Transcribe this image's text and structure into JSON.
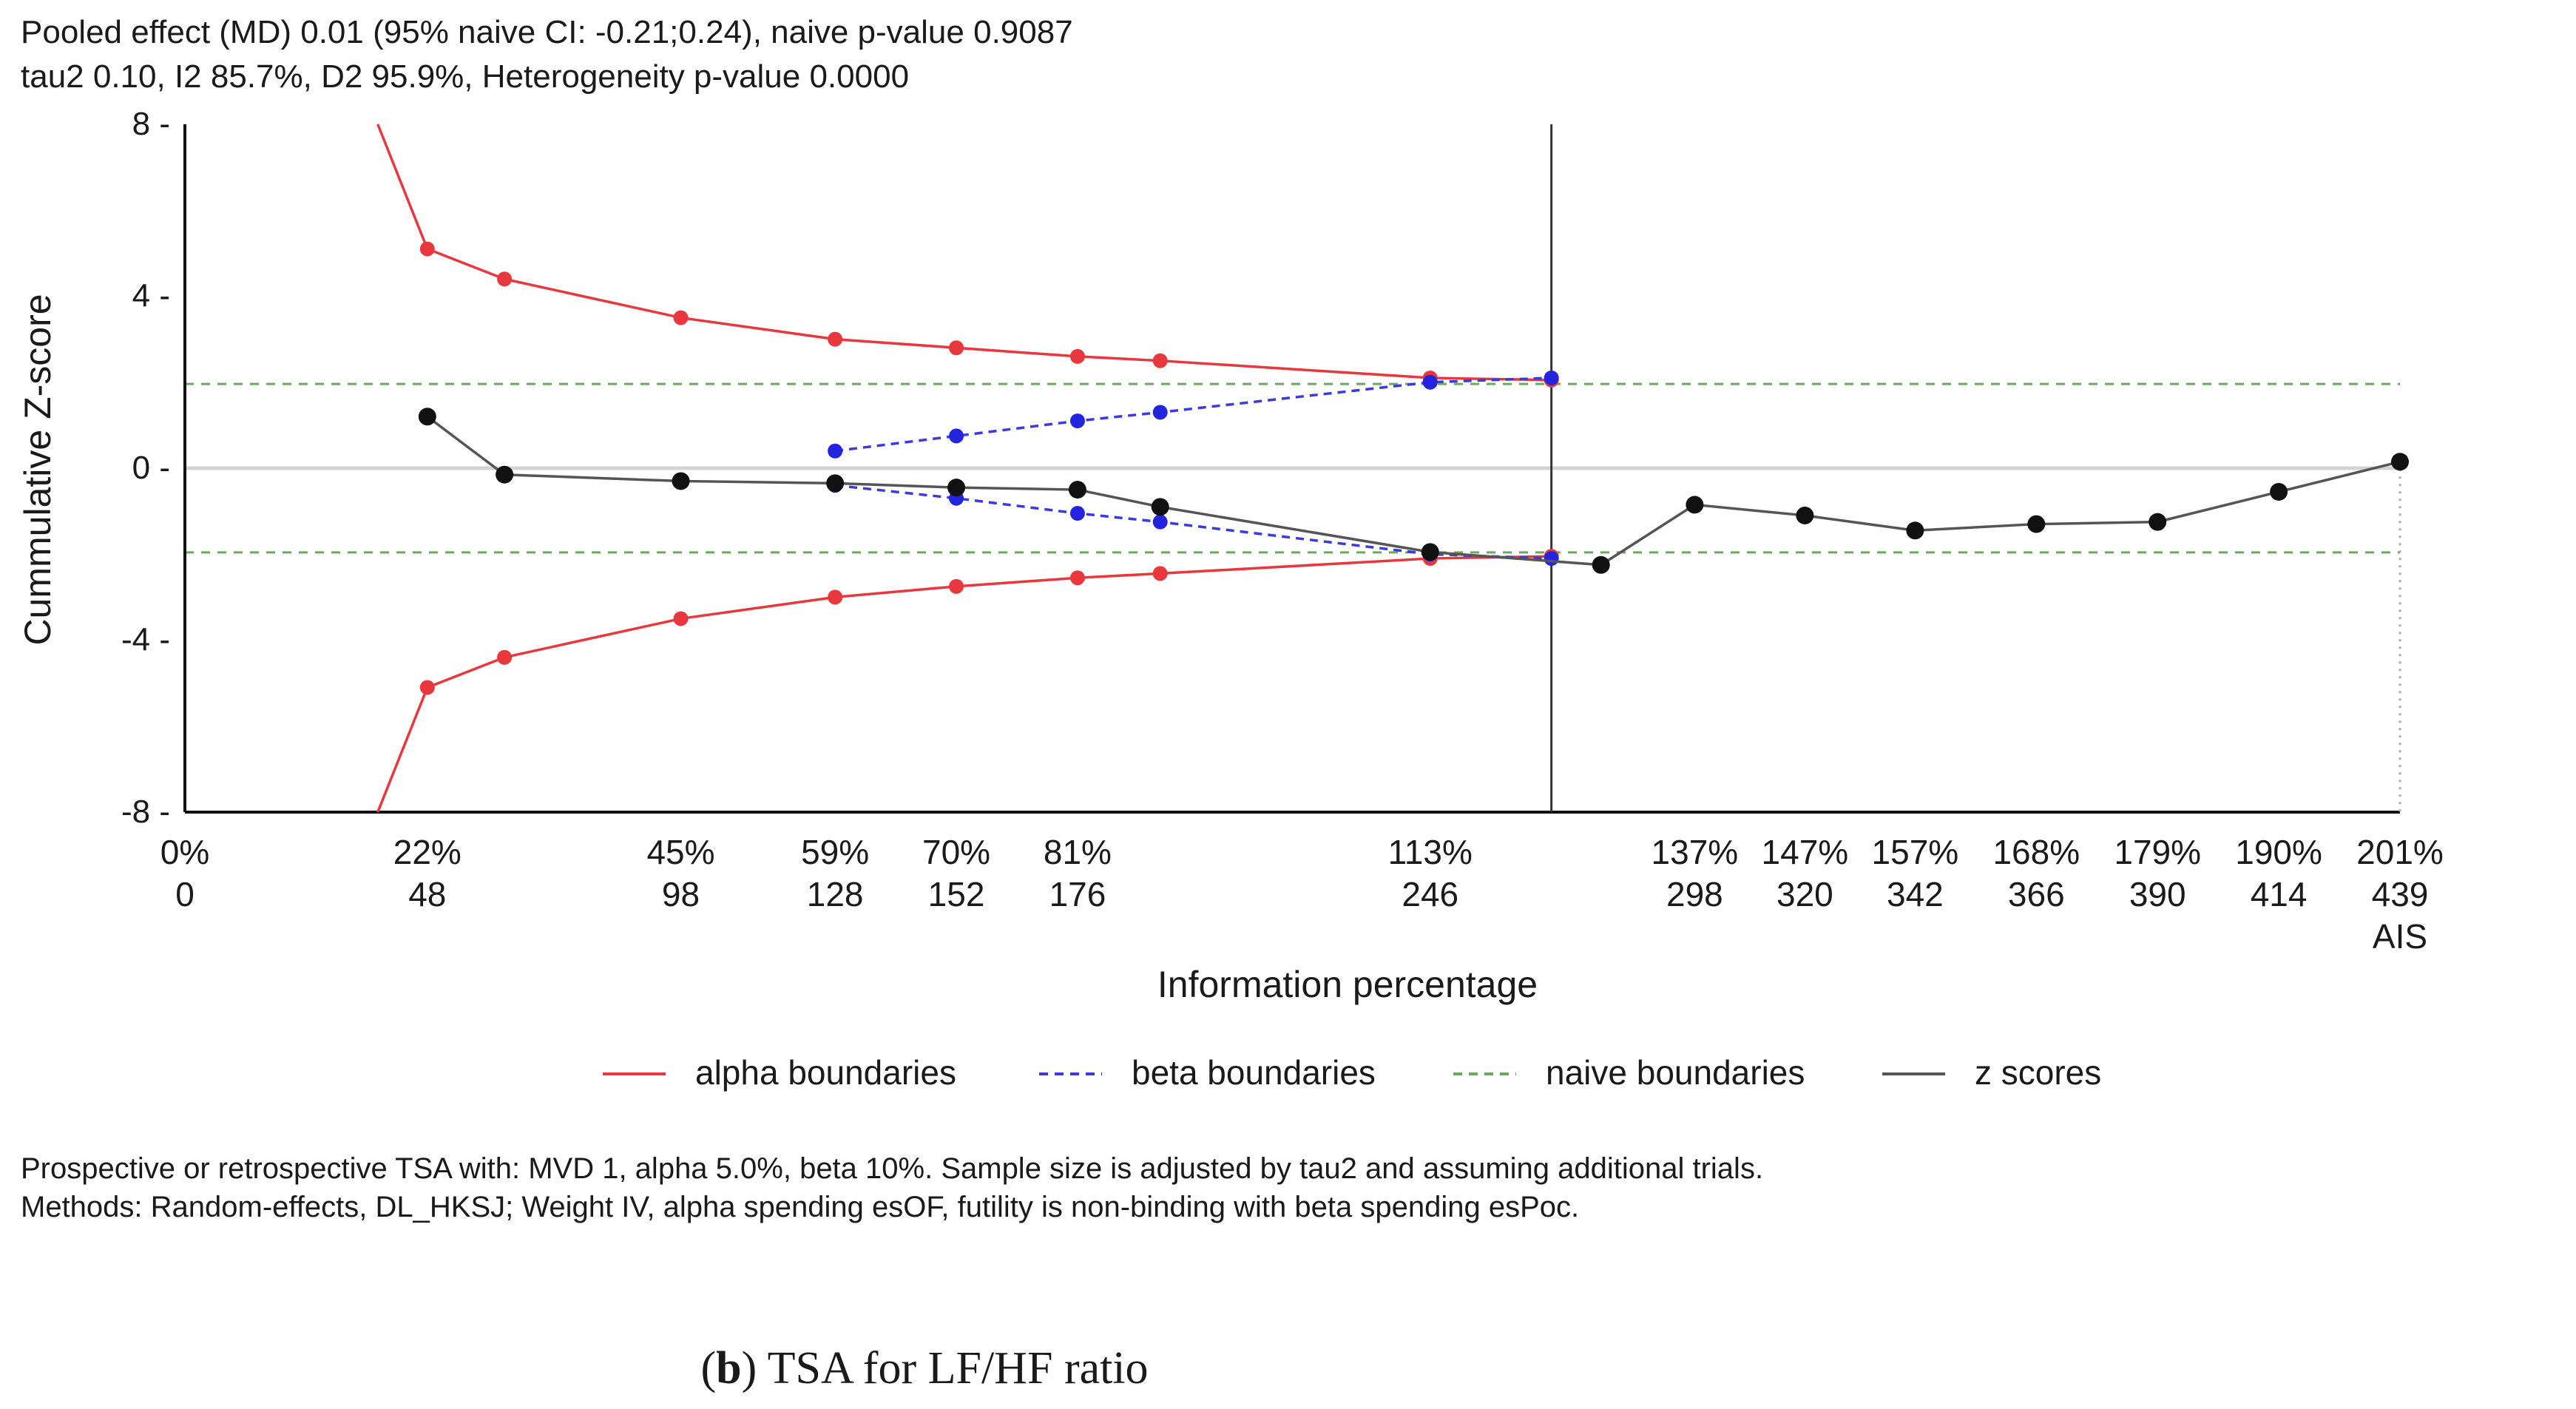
{
  "header": {
    "line1": "Pooled effect (MD) 0.01 (95% naive CI: -0.21;0.24), naive p-value 0.9087",
    "line2": "tau2 0.10, I2 85.7%, D2 95.9%, Heterogeneity p-value 0.0000"
  },
  "footer": {
    "line1": "Prospective or retrospective TSA with: MVD 1, alpha 5.0%, beta 10%. Sample size is adjusted by tau2 and assuming  additional trials.",
    "line2": "Methods: Random-effects, DL_HKSJ; Weight IV, alpha spending esOF, futility is non-binding with beta spending esPoc."
  },
  "caption": {
    "prefix": "(",
    "bold": "b",
    "rest": ") TSA for LF/HF ratio"
  },
  "legend": [
    {
      "label": "alpha boundaries",
      "color": "#e8383d",
      "dash": "solid"
    },
    {
      "label": "beta boundaries",
      "color": "#3a3adf",
      "dash": "dashed"
    },
    {
      "label": "naive boundaries",
      "color": "#6aaa5c",
      "dash": "dashed"
    },
    {
      "label": "z scores",
      "color": "#555555",
      "dash": "solid"
    }
  ],
  "chart_data": {
    "type": "line",
    "xlabel": "Information percentage",
    "ylabel": "Cummulative Z-score",
    "xlim": [
      0,
      201
    ],
    "ylim": [
      -8,
      8
    ],
    "yticks": [
      8,
      4,
      0,
      -4,
      -8
    ],
    "yticklabels": [
      "8 -",
      "4 -",
      "0 -",
      "-4 -",
      "-8 -"
    ],
    "xticks": [
      {
        "pct": 0,
        "label": "0%",
        "n": "0"
      },
      {
        "pct": 22,
        "label": "22%",
        "n": "48"
      },
      {
        "pct": 45,
        "label": "45%",
        "n": "98"
      },
      {
        "pct": 59,
        "label": "59%",
        "n": "128"
      },
      {
        "pct": 70,
        "label": "70%",
        "n": "152"
      },
      {
        "pct": 81,
        "label": "81%",
        "n": "176"
      },
      {
        "pct": 113,
        "label": "113%",
        "n": "246"
      },
      {
        "pct": 137,
        "label": "137%",
        "n": "298"
      },
      {
        "pct": 147,
        "label": "147%",
        "n": "320"
      },
      {
        "pct": 157,
        "label": "157%",
        "n": "342"
      },
      {
        "pct": 168,
        "label": "168%",
        "n": "366"
      },
      {
        "pct": 179,
        "label": "179%",
        "n": "390"
      },
      {
        "pct": 190,
        "label": "190%",
        "n": "414"
      },
      {
        "pct": 201,
        "label": "201%",
        "n": "439",
        "extra": "AIS"
      }
    ],
    "vertical_line_x": 124,
    "ais_x": 201,
    "naive_boundaries": [
      1.96,
      -1.96
    ],
    "series": {
      "alpha_upper": {
        "x": [
          17.5,
          22,
          29,
          45,
          59,
          70,
          81,
          88.5,
          113,
          124
        ],
        "y": [
          8,
          5.1,
          4.4,
          3.5,
          3.0,
          2.8,
          2.6,
          2.5,
          2.1,
          2.05
        ],
        "marker_from": 1
      },
      "alpha_lower": {
        "x": [
          17.5,
          22,
          29,
          45,
          59,
          70,
          81,
          88.5,
          113,
          124
        ],
        "y": [
          -8,
          -5.1,
          -4.4,
          -3.5,
          -3.0,
          -2.75,
          -2.55,
          -2.45,
          -2.1,
          -2.05
        ],
        "marker_from": 1
      },
      "beta_upper": {
        "x": [
          59,
          70,
          81,
          88.5,
          113,
          124
        ],
        "y": [
          0.4,
          0.75,
          1.1,
          1.3,
          2.0,
          2.1
        ]
      },
      "beta_lower": {
        "x": [
          59,
          70,
          81,
          88.5,
          113,
          124
        ],
        "y": [
          -0.4,
          -0.7,
          -1.05,
          -1.25,
          -2.0,
          -2.1
        ]
      },
      "z_scores": {
        "x": [
          22,
          29,
          45,
          59,
          70,
          81,
          88.5,
          113,
          128.5,
          137,
          147,
          157,
          168,
          179,
          190,
          201
        ],
        "y": [
          1.2,
          -0.15,
          -0.3,
          -0.35,
          -0.45,
          -0.5,
          -0.9,
          -1.95,
          -2.25,
          -0.85,
          -1.1,
          -1.45,
          -1.3,
          -1.25,
          -0.55,
          0.15
        ]
      }
    }
  }
}
